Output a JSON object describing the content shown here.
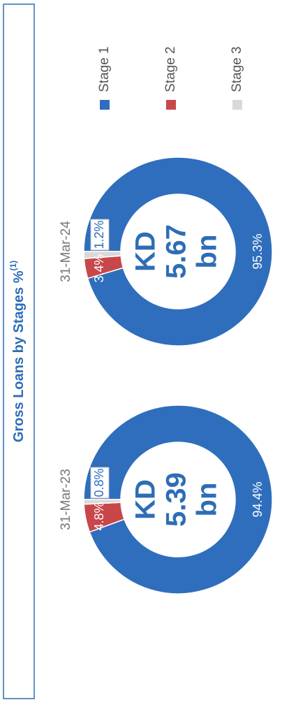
{
  "title": "Gross Loans by Stages %",
  "title_note": "(1)",
  "chart_data": [
    {
      "type": "donut",
      "title": "31-Mar-23",
      "categories": [
        "Stage 1",
        "Stage 2",
        "Stage 3"
      ],
      "values": [
        94.4,
        4.8,
        0.8
      ],
      "value_labels": [
        "94.4%",
        "4.8%",
        "0.8%"
      ],
      "colors": [
        "#2f6ebd",
        "#c8474b",
        "#d9d9d9"
      ],
      "center_text": [
        "KD",
        "5.39",
        "bn"
      ]
    },
    {
      "type": "donut",
      "title": "31-Mar-24",
      "categories": [
        "Stage 1",
        "Stage 2",
        "Stage 3"
      ],
      "values": [
        95.3,
        3.4,
        1.2
      ],
      "value_labels": [
        "95.3%",
        "3.4%",
        "1.2%"
      ],
      "colors": [
        "#2f6ebd",
        "#c8474b",
        "#d9d9d9"
      ],
      "center_text": [
        "KD",
        "5.67",
        "bn"
      ]
    }
  ]
}
